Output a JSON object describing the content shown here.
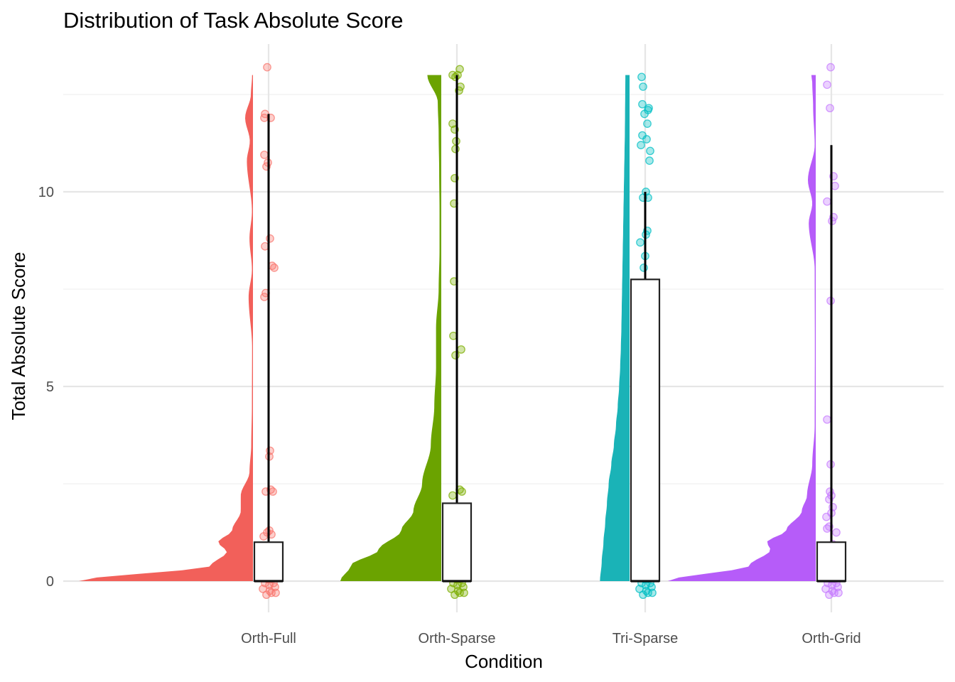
{
  "chart_data": {
    "type": "raincloud",
    "title": "Distribution of Task Absolute Score",
    "xlabel": "Condition",
    "ylabel": "Total Absolute Score",
    "ylim": [
      -0.85,
      13.3
    ],
    "y_ticks": [
      0,
      5,
      10
    ],
    "grid": true,
    "legend": "none",
    "categories": [
      "Orth-Full",
      "Orth-Sparse",
      "Tri-Sparse",
      "Orth-Grid"
    ],
    "colors": [
      "#F8766D",
      "#7CAE00",
      "#00BFC4",
      "#C77CFF"
    ],
    "density_fill": [
      "#f2605a",
      "#6ba300",
      "#1ab3b7",
      "#b65cf9"
    ],
    "series": [
      {
        "name": "Orth-Full",
        "box": {
          "q1": 0,
          "median": 0,
          "q3": 1,
          "whisker_low": 0,
          "whisker_high": 12
        },
        "density": [
          [
            0,
            1.0
          ],
          [
            0.4,
            0.24
          ],
          [
            0.75,
            0.15
          ],
          [
            1.0,
            0.2
          ],
          [
            1.3,
            0.12
          ],
          [
            1.8,
            0.07
          ],
          [
            2.2,
            0.07
          ],
          [
            2.8,
            0.02
          ],
          [
            3.5,
            0.01
          ],
          [
            4.5,
            0.006
          ],
          [
            6,
            0.005
          ],
          [
            7.3,
            0.025
          ],
          [
            8.0,
            0.006
          ],
          [
            8.8,
            0.02
          ],
          [
            9.5,
            0.006
          ],
          [
            10.8,
            0.035
          ],
          [
            11.3,
            0.018
          ],
          [
            11.9,
            0.045
          ],
          [
            12.5,
            0.012
          ],
          [
            13.0,
            0.005
          ]
        ],
        "points": [
          [
            0.05,
            -0.1
          ],
          [
            -0.2,
            0.25
          ],
          [
            0.3,
            0.35
          ],
          [
            -0.4,
            -0.2
          ],
          [
            0.12,
            0.15
          ],
          [
            -0.05,
            0.05
          ],
          [
            0.45,
            -0.15
          ],
          [
            0.2,
            -0.3
          ],
          [
            -0.3,
            0.32
          ],
          [
            0.15,
            0.1
          ],
          [
            0.35,
            -0.05
          ],
          [
            -0.15,
            -0.35
          ],
          [
            0.4,
            0.2
          ],
          [
            -0.45,
            0.1
          ],
          [
            0.1,
            0.3
          ],
          [
            -0.25,
            -0.05
          ],
          [
            0.25,
            0.05
          ],
          [
            0.08,
            -0.25
          ],
          [
            -0.35,
            0.38
          ],
          [
            0.5,
            -0.3
          ],
          [
            -0.1,
            1.25
          ],
          [
            0.2,
            1.2
          ],
          [
            -0.35,
            1.15
          ],
          [
            0.05,
            1.3
          ],
          [
            -0.2,
            2.3
          ],
          [
            0.3,
            2.3
          ],
          [
            0.15,
            2.35
          ],
          [
            0.05,
            3.2
          ],
          [
            0.1,
            3.35
          ],
          [
            -0.3,
            7.3
          ],
          [
            -0.2,
            7.4
          ],
          [
            0.25,
            8.1
          ],
          [
            0.4,
            8.05
          ],
          [
            -0.25,
            8.6
          ],
          [
            0.1,
            8.8
          ],
          [
            -0.3,
            10.95
          ],
          [
            -0.15,
            10.65
          ],
          [
            -0.05,
            10.75
          ],
          [
            -0.3,
            11.9
          ],
          [
            -0.25,
            12.0
          ],
          [
            0.15,
            11.9
          ],
          [
            -0.1,
            13.2
          ]
        ]
      },
      {
        "name": "Orth-Sparse",
        "box": {
          "q1": 0,
          "median": 0,
          "q3": 2,
          "whisker_low": 0,
          "whisker_high": 13
        },
        "density": [
          [
            0,
            0.58
          ],
          [
            0.4,
            0.52
          ],
          [
            0.8,
            0.36
          ],
          [
            1.3,
            0.23
          ],
          [
            1.8,
            0.16
          ],
          [
            2.5,
            0.11
          ],
          [
            3.5,
            0.06
          ],
          [
            4.5,
            0.04
          ],
          [
            5.5,
            0.03
          ],
          [
            6.5,
            0.03
          ],
          [
            7.5,
            0.015
          ],
          [
            8.5,
            0.01
          ],
          [
            9.5,
            0.01
          ],
          [
            10.5,
            0.012
          ],
          [
            11.5,
            0.015
          ],
          [
            12.3,
            0.02
          ],
          [
            13.0,
            0.08
          ]
        ],
        "points": [
          [
            0.05,
            -0.1
          ],
          [
            -0.2,
            0.25
          ],
          [
            0.3,
            0.35
          ],
          [
            -0.4,
            -0.2
          ],
          [
            0.12,
            0.15
          ],
          [
            -0.05,
            0.05
          ],
          [
            0.45,
            -0.15
          ],
          [
            0.2,
            -0.3
          ],
          [
            -0.3,
            0.32
          ],
          [
            0.15,
            0.1
          ],
          [
            0.35,
            -0.05
          ],
          [
            -0.15,
            -0.35
          ],
          [
            0.4,
            0.2
          ],
          [
            -0.45,
            0.1
          ],
          [
            0.1,
            0.3
          ],
          [
            -0.25,
            -0.05
          ],
          [
            0.25,
            0.05
          ],
          [
            0.08,
            -0.25
          ],
          [
            -0.35,
            0.38
          ],
          [
            0.5,
            -0.3
          ],
          [
            -0.3,
            0.75
          ],
          [
            0.2,
            0.75
          ],
          [
            -0.4,
            0.9
          ],
          [
            0.1,
            1.0
          ],
          [
            0.3,
            1.05
          ],
          [
            -0.15,
            1.1
          ],
          [
            0.05,
            1.15
          ],
          [
            -0.35,
            1.15
          ],
          [
            0.1,
            1.6
          ],
          [
            -0.3,
            2.2
          ],
          [
            0.2,
            2.35
          ],
          [
            0.35,
            2.3
          ],
          [
            -0.1,
            5.8
          ],
          [
            0.3,
            5.95
          ],
          [
            -0.25,
            6.3
          ],
          [
            -0.2,
            7.7
          ],
          [
            -0.2,
            9.7
          ],
          [
            -0.15,
            10.35
          ],
          [
            -0.1,
            11.1
          ],
          [
            -0.05,
            11.3
          ],
          [
            -0.15,
            11.6
          ],
          [
            -0.3,
            11.75
          ],
          [
            0.15,
            12.6
          ],
          [
            0.25,
            12.7
          ],
          [
            -0.3,
            13.0
          ],
          [
            0.05,
            13.0
          ],
          [
            -0.1,
            12.95
          ],
          [
            0.2,
            13.15
          ]
        ]
      },
      {
        "name": "Tri-Sparse",
        "box": {
          "q1": 0,
          "median": 0,
          "q3": 7.75,
          "whisker_low": 0,
          "whisker_high": 10
        },
        "density": [
          [
            0,
            0.17
          ],
          [
            0.5,
            0.16
          ],
          [
            1.0,
            0.15
          ],
          [
            1.5,
            0.14
          ],
          [
            2.0,
            0.13
          ],
          [
            2.5,
            0.12
          ],
          [
            3.0,
            0.105
          ],
          [
            3.5,
            0.09
          ],
          [
            4.0,
            0.078
          ],
          [
            4.5,
            0.068
          ],
          [
            5.0,
            0.06
          ],
          [
            5.5,
            0.054
          ],
          [
            6.0,
            0.05
          ],
          [
            6.5,
            0.047
          ],
          [
            7.0,
            0.045
          ],
          [
            7.5,
            0.043
          ],
          [
            8.0,
            0.041
          ],
          [
            8.5,
            0.039
          ],
          [
            9.0,
            0.037
          ],
          [
            9.5,
            0.035
          ],
          [
            10.0,
            0.033
          ],
          [
            10.5,
            0.031
          ],
          [
            11.0,
            0.029
          ],
          [
            11.5,
            0.027
          ],
          [
            12.0,
            0.026
          ],
          [
            12.5,
            0.025
          ],
          [
            13.0,
            0.024
          ]
        ],
        "points": [
          [
            0.05,
            -0.1
          ],
          [
            -0.2,
            0.25
          ],
          [
            0.3,
            0.35
          ],
          [
            -0.4,
            -0.2
          ],
          [
            0.12,
            0.15
          ],
          [
            -0.05,
            0.05
          ],
          [
            0.45,
            -0.15
          ],
          [
            0.2,
            -0.3
          ],
          [
            -0.3,
            0.32
          ],
          [
            0.15,
            0.1
          ],
          [
            0.35,
            -0.05
          ],
          [
            -0.15,
            -0.35
          ],
          [
            0.4,
            0.2
          ],
          [
            -0.45,
            0.1
          ],
          [
            0.1,
            0.3
          ],
          [
            -0.25,
            -0.05
          ],
          [
            0.25,
            0.05
          ],
          [
            0.08,
            -0.25
          ],
          [
            -0.35,
            0.38
          ],
          [
            0.5,
            -0.3
          ],
          [
            0.05,
            0.6
          ],
          [
            0.1,
            0.75
          ],
          [
            -0.3,
            0.9
          ],
          [
            0.2,
            1.05
          ],
          [
            -0.2,
            1.15
          ],
          [
            -0.35,
            1.25
          ],
          [
            0.15,
            1.35
          ],
          [
            -0.1,
            1.6
          ],
          [
            0.2,
            1.65
          ],
          [
            0.3,
            1.65
          ],
          [
            -0.25,
            2.05
          ],
          [
            -0.05,
            1.75
          ],
          [
            -0.45,
            2.9
          ],
          [
            -0.45,
            2.95
          ],
          [
            0.0,
            4.35
          ],
          [
            -0.25,
            5.05
          ],
          [
            -0.2,
            5.95
          ],
          [
            -0.45,
            7.2
          ],
          [
            -0.1,
            8.05
          ],
          [
            0.0,
            8.35
          ],
          [
            -0.35,
            8.7
          ],
          [
            0.05,
            8.9
          ],
          [
            0.15,
            9.0
          ],
          [
            -0.15,
            9.85
          ],
          [
            0.2,
            9.85
          ],
          [
            0.05,
            10.0
          ],
          [
            0.3,
            10.8
          ],
          [
            0.35,
            11.05
          ],
          [
            -0.3,
            11.2
          ],
          [
            0.1,
            11.35
          ],
          [
            -0.2,
            11.45
          ],
          [
            -0.05,
            12.0
          ],
          [
            0.15,
            11.75
          ],
          [
            0.2,
            12.1
          ],
          [
            0.25,
            12.15
          ],
          [
            -0.2,
            12.25
          ],
          [
            -0.15,
            12.7
          ],
          [
            -0.25,
            12.95
          ]
        ]
      },
      {
        "name": "Orth-Grid",
        "box": {
          "q1": 0,
          "median": 0,
          "q3": 1,
          "whisker_low": 0,
          "whisker_high": 11.2
        },
        "density": [
          [
            0,
            0.85
          ],
          [
            0.4,
            0.38
          ],
          [
            0.8,
            0.26
          ],
          [
            1.0,
            0.28
          ],
          [
            1.3,
            0.17
          ],
          [
            1.8,
            0.08
          ],
          [
            2.2,
            0.05
          ],
          [
            3.0,
            0.02
          ],
          [
            4.0,
            0.006
          ],
          [
            6.0,
            0.005
          ],
          [
            8.0,
            0.006
          ],
          [
            9.2,
            0.04
          ],
          [
            9.7,
            0.02
          ],
          [
            10.3,
            0.045
          ],
          [
            11.2,
            0.006
          ],
          [
            12.2,
            0.015
          ],
          [
            12.8,
            0.02
          ],
          [
            13.0,
            0.025
          ]
        ],
        "points": [
          [
            0.05,
            -0.1
          ],
          [
            -0.2,
            0.25
          ],
          [
            0.3,
            0.35
          ],
          [
            -0.4,
            -0.2
          ],
          [
            0.12,
            0.15
          ],
          [
            -0.05,
            0.05
          ],
          [
            0.45,
            -0.15
          ],
          [
            0.2,
            -0.3
          ],
          [
            -0.3,
            0.32
          ],
          [
            0.15,
            0.1
          ],
          [
            0.35,
            -0.05
          ],
          [
            -0.15,
            -0.35
          ],
          [
            0.4,
            0.2
          ],
          [
            -0.45,
            0.1
          ],
          [
            0.1,
            0.3
          ],
          [
            -0.25,
            -0.05
          ],
          [
            0.25,
            0.05
          ],
          [
            0.08,
            -0.25
          ],
          [
            -0.35,
            0.38
          ],
          [
            0.5,
            -0.3
          ],
          [
            -0.35,
            0.75
          ],
          [
            -0.2,
            0.85
          ],
          [
            0.1,
            0.95
          ],
          [
            0.3,
            0.9
          ],
          [
            -0.3,
            1.35
          ],
          [
            -0.15,
            1.4
          ],
          [
            0.35,
            1.25
          ],
          [
            -0.35,
            1.65
          ],
          [
            0.0,
            1.75
          ],
          [
            0.1,
            1.9
          ],
          [
            0.0,
            2.2
          ],
          [
            -0.15,
            2.1
          ],
          [
            -0.1,
            2.3
          ],
          [
            -0.05,
            3.0
          ],
          [
            -0.3,
            4.15
          ],
          [
            -0.05,
            7.2
          ],
          [
            -0.3,
            9.75
          ],
          [
            0.05,
            9.25
          ],
          [
            0.15,
            9.35
          ],
          [
            0.15,
            10.4
          ],
          [
            0.25,
            10.15
          ],
          [
            -0.1,
            12.15
          ],
          [
            -0.3,
            12.75
          ],
          [
            -0.05,
            13.2
          ]
        ]
      }
    ]
  }
}
